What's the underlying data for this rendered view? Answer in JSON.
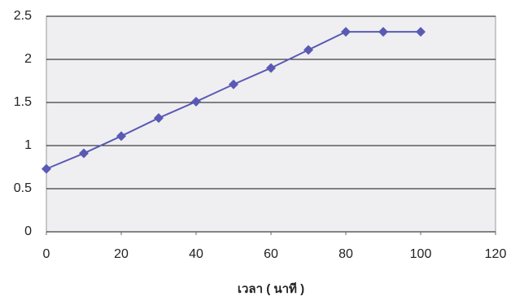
{
  "chart_data": {
    "type": "line",
    "x_label": "เวลา ( นาที )",
    "x": [
      0,
      10,
      20,
      30,
      40,
      50,
      60,
      70,
      80,
      90,
      100
    ],
    "series": [
      {
        "color": "#5a5ab4",
        "values": [
          0.73,
          0.91,
          1.11,
          1.32,
          1.51,
          1.71,
          1.9,
          2.11,
          2.32,
          2.32,
          2.32
        ]
      }
    ],
    "xlim": [
      0,
      120
    ],
    "xticks": [
      0,
      20,
      40,
      60,
      80,
      100,
      120
    ],
    "ylim": [
      0,
      2.5
    ],
    "yticks": [
      0,
      0.5,
      1,
      1.5,
      2,
      2.5
    ],
    "grid": true
  }
}
